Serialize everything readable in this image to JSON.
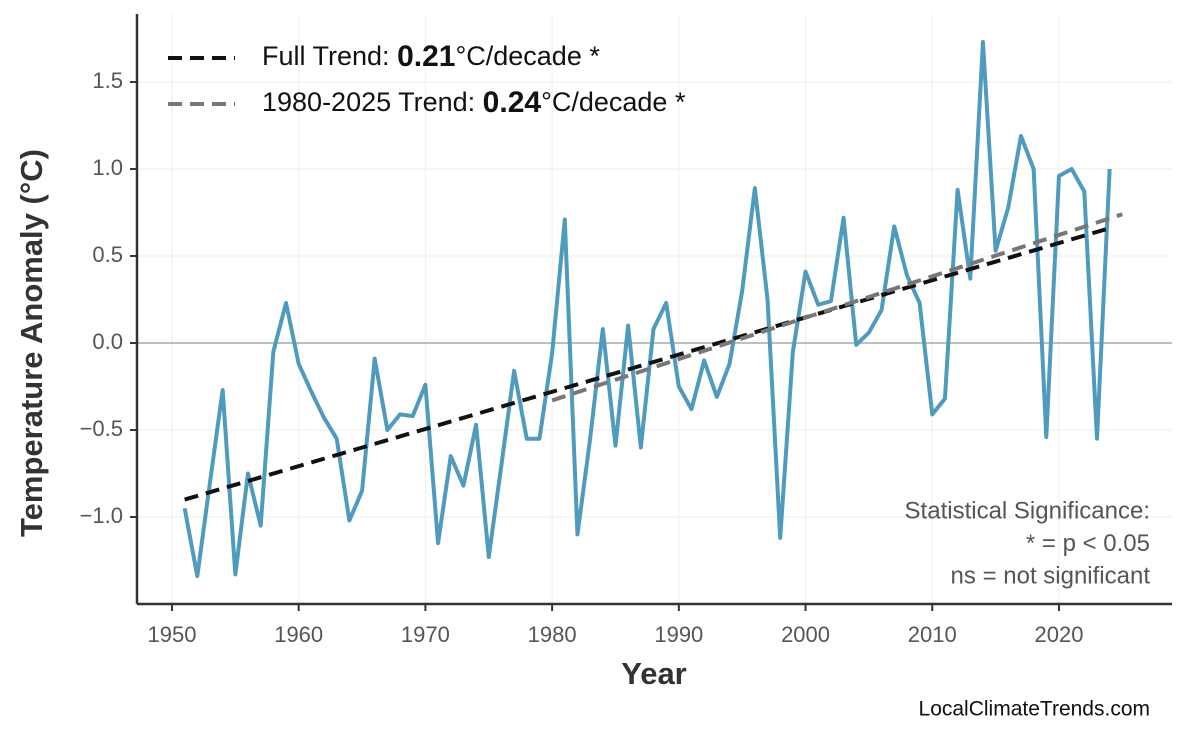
{
  "chart_data": {
    "type": "line",
    "x_label": "Year",
    "y_label": "Temperature Anomaly (°C)",
    "x": [
      1951,
      1952,
      1953,
      1954,
      1955,
      1956,
      1957,
      1958,
      1959,
      1960,
      1961,
      1962,
      1963,
      1964,
      1965,
      1966,
      1967,
      1968,
      1969,
      1970,
      1971,
      1972,
      1973,
      1974,
      1975,
      1976,
      1977,
      1978,
      1979,
      1980,
      1981,
      1982,
      1983,
      1984,
      1985,
      1986,
      1987,
      1988,
      1989,
      1990,
      1991,
      1992,
      1993,
      1994,
      1995,
      1996,
      1997,
      1998,
      1999,
      2000,
      2001,
      2002,
      2003,
      2004,
      2005,
      2006,
      2007,
      2008,
      2009,
      2010,
      2011,
      2012,
      2013,
      2014,
      2015,
      2016,
      2017,
      2018,
      2019,
      2020,
      2021,
      2022,
      2023,
      2024
    ],
    "values": [
      -0.95,
      -1.34,
      -0.8,
      -0.27,
      -1.33,
      -0.75,
      -1.05,
      -0.05,
      0.23,
      -0.12,
      -0.28,
      -0.43,
      -0.55,
      -1.02,
      -0.85,
      -0.09,
      -0.5,
      -0.41,
      -0.42,
      -0.24,
      -1.15,
      -0.65,
      -0.82,
      -0.47,
      -1.23,
      -0.7,
      -0.16,
      -0.55,
      -0.55,
      -0.06,
      0.71,
      -1.1,
      -0.55,
      0.08,
      -0.59,
      0.1,
      -0.6,
      0.08,
      0.23,
      -0.25,
      -0.38,
      -0.1,
      -0.31,
      -0.12,
      0.3,
      0.89,
      0.25,
      -1.12,
      -0.05,
      0.41,
      0.22,
      0.24,
      0.72,
      -0.01,
      0.06,
      0.19,
      0.67,
      0.39,
      0.23,
      -0.41,
      -0.32,
      0.88,
      0.37,
      1.73,
      0.53,
      0.78,
      1.19,
      1.0,
      -0.54,
      0.96,
      1.0,
      0.87,
      -0.55,
      1.0
    ],
    "color": "#4e9bbd",
    "trends": [
      {
        "name_parts": [
          "Full Trend: ",
          "0.21",
          "°C/decade *"
        ],
        "color": "#111111",
        "x": [
          1951,
          2024
        ],
        "values": [
          -0.9,
          0.66
        ]
      },
      {
        "name_parts": [
          "1980-2025 Trend: ",
          "0.24",
          "°C/decade *"
        ],
        "color": "#777777",
        "x": [
          1980,
          2025
        ],
        "values": [
          -0.33,
          0.74
        ]
      }
    ],
    "reference_line": 0,
    "xlim": [
      1947.24,
      2028.92
    ],
    "ylim": [
      -1.5,
      1.891
    ],
    "xticks": [
      1950,
      1960,
      1970,
      1980,
      1990,
      2000,
      2010,
      2020
    ],
    "yticks": [
      {
        "value": -1,
        "label": "−1.0"
      },
      {
        "value": -0.5,
        "label": "−0.5"
      },
      {
        "value": 0,
        "label": "0.0"
      },
      0.5,
      {
        "value": 1,
        "label": "1.0"
      },
      1.5
    ],
    "grid": true,
    "legend_position": "upper left",
    "annotation": [
      "Statistical Significance:",
      "* = p < 0.05",
      "ns = not significant"
    ],
    "source": "LocalClimateTrends.com"
  }
}
